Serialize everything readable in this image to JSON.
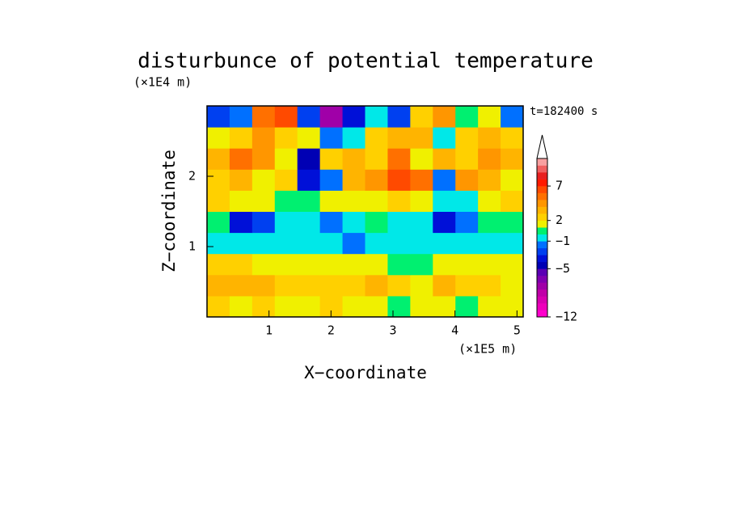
{
  "chart_data": {
    "type": "contour",
    "title": "disturbunce of potential temperature",
    "x_label": "X−coordinate",
    "y_label": "Z−coordinate",
    "x_unit": "(×1E5 m)",
    "y_unit": "(×1E4 m)",
    "time_label": "t=182400 s",
    "xlim": [
      0,
      5.1
    ],
    "ylim": [
      0,
      3
    ],
    "xticks": [
      1,
      2,
      3,
      4,
      5
    ],
    "yticks": [
      1,
      2
    ],
    "z": [
      [
        2,
        1,
        2,
        1,
        1,
        2,
        1,
        1,
        0,
        1,
        1,
        0,
        1,
        1
      ],
      [
        3,
        3,
        3,
        2,
        2,
        2,
        2,
        3,
        2,
        1,
        3,
        2,
        2,
        1
      ],
      [
        2,
        2,
        1,
        1,
        1,
        1,
        1,
        1,
        0,
        0,
        1,
        1,
        1,
        1
      ],
      [
        -1,
        -1,
        -1,
        -1,
        -1,
        -1,
        -2,
        -1,
        -1,
        -1,
        -1,
        -1,
        -1,
        -1
      ],
      [
        0,
        -4,
        -3,
        -1,
        -1,
        -2,
        -1,
        0,
        -1,
        -1,
        -4,
        -2,
        0,
        0
      ],
      [
        2,
        1,
        1,
        0,
        0,
        1,
        1,
        1,
        2,
        1,
        -1,
        -1,
        1,
        2
      ],
      [
        2,
        3,
        1,
        2,
        -4,
        -2,
        3,
        4,
        6,
        5,
        -2,
        4,
        3,
        1
      ],
      [
        3,
        5,
        4,
        1,
        -5,
        2,
        3,
        2,
        5,
        1,
        3,
        2,
        4,
        3
      ],
      [
        1,
        2,
        4,
        2,
        1,
        -2,
        -1,
        2,
        3,
        3,
        -1,
        2,
        3,
        2
      ],
      [
        -3,
        -2,
        5,
        6,
        -3,
        -8,
        -4,
        -1,
        -3,
        2,
        4,
        0,
        1,
        -2
      ]
    ],
    "levels": [
      -12,
      -11,
      -10,
      -9,
      -8,
      -7,
      -6,
      -5,
      -4,
      -3,
      -2,
      -1,
      0,
      1,
      2,
      3,
      4,
      5,
      6,
      7,
      8,
      9,
      10,
      11
    ],
    "level_colors": [
      "#ff00cc",
      "#ee00bb",
      "#d800b0",
      "#c000a8",
      "#a000a8",
      "#8000b0",
      "#5a00b4",
      "#0000b4",
      "#0010d8",
      "#0040f0",
      "#0070ff",
      "#00e8e8",
      "#00f070",
      "#f0f000",
      "#ffd000",
      "#ffb400",
      "#ff9600",
      "#ff7000",
      "#ff4a00",
      "#ff1a00",
      "#e82020",
      "#f06060",
      "#f8a0a0"
    ],
    "colorbar_ticks": [
      {
        "value": -12,
        "label": "−12"
      },
      {
        "value": -5,
        "label": "−5"
      },
      {
        "value": -1,
        "label": "−1"
      },
      2,
      7
    ]
  }
}
